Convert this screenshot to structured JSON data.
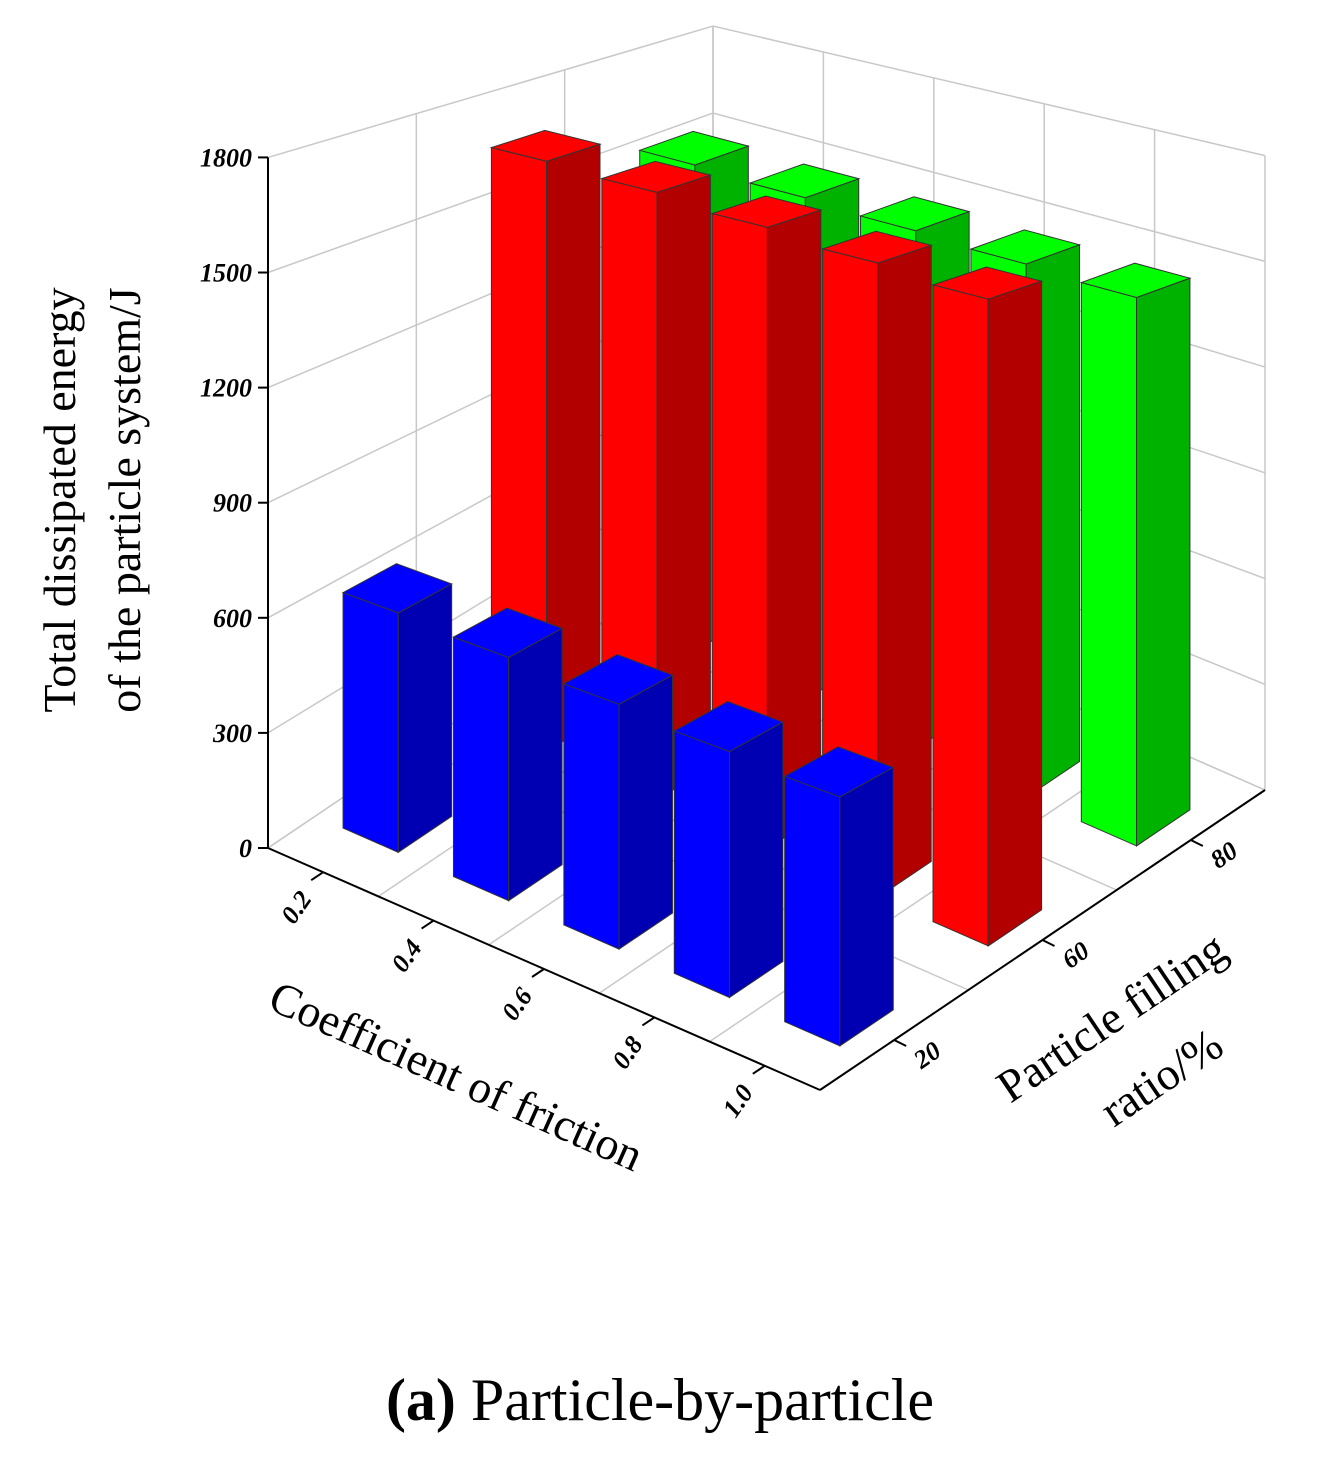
{
  "chart_data": {
    "type": "bar3d",
    "ylabel": [
      "Total dissipated energy",
      "of the particle system/J"
    ],
    "xlabel": "Coefficient of friction",
    "zlabel": [
      "Particle filling",
      "ratio/%"
    ],
    "categories": [
      "0.2",
      "0.4",
      "0.6",
      "0.8",
      "1.0"
    ],
    "series": [
      {
        "name": "20",
        "color": "#0000ff",
        "values": [
          625,
          615,
          600,
          585,
          575
        ]
      },
      {
        "name": "60",
        "color": "#ff0000",
        "values": [
          1680,
          1670,
          1650,
          1630,
          1610
        ]
      },
      {
        "name": "80",
        "color": "#00ff00",
        "values": [
          1520,
          1510,
          1500,
          1490,
          1480
        ]
      }
    ],
    "ylim": [
      0,
      1800
    ],
    "yticks": [
      0,
      300,
      600,
      900,
      1200,
      1500,
      1800
    ],
    "grid": true,
    "caption": {
      "label": "(a)",
      "text": "Particle-by-particle"
    }
  }
}
